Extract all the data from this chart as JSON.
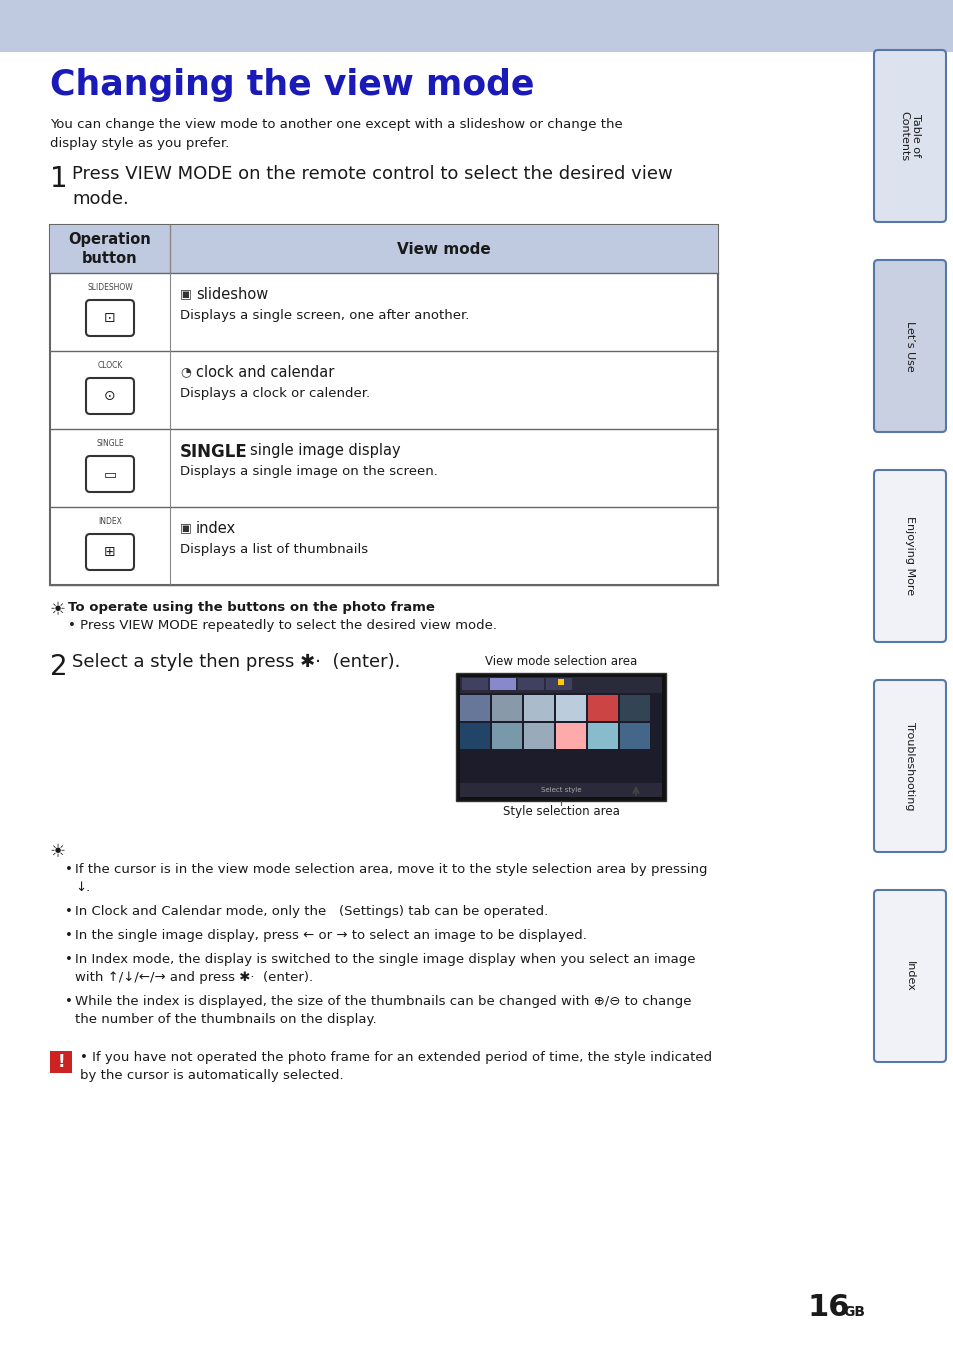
{
  "title": "Changing the view mode",
  "title_color": "#1a1ab8",
  "header_bg": "#bfc9e0",
  "page_bg": "#ffffff",
  "sidebar_bg": "#dce2ee",
  "sidebar_active_bg": "#c8d0e2",
  "body_text": "You can change the view mode to another one except with a slideshow or change the\ndisplay style as you prefer.",
  "step1_text": "Press VIEW MODE on the remote control to select the desired view\nmode.",
  "table_header_bg": "#bfc9e0",
  "table_rows": [
    {
      "button_label": "SLIDESHOW",
      "mode_title": " slideshow",
      "mode_desc": "Displays a single screen, one after another.",
      "bold": false
    },
    {
      "button_label": "CLOCK",
      "mode_title": " clock and calendar",
      "mode_desc": "Displays a clock or calender.",
      "bold": false
    },
    {
      "button_label": "SINGLE",
      "mode_title": " single image display",
      "mode_desc": "Displays a single image on the screen.",
      "bold": true
    },
    {
      "button_label": "INDEX",
      "mode_title": " index",
      "mode_desc": "Displays a list of thumbnails",
      "bold": false
    }
  ],
  "tip_title": "To operate using the buttons on the photo frame",
  "tip_text": "Press VIEW MODE repeatedly to select the desired view mode.",
  "step2_text": "Select a style then press ✱·  (enter).",
  "view_mode_label": "View mode selection area",
  "style_label": "Style selection area",
  "bullet_points": [
    "If the cursor is in the view mode selection area, move it to the style selection area by pressing\n↓.",
    "In Clock and Calendar mode, only the   (Settings) tab can be operated.",
    "In the single image display, press ← or → to select an image to be displayed.",
    "In Index mode, the display is switched to the single image display when you select an image\nwith ↑/↓/←/→ and press ✱·  (enter).",
    "While the index is displayed, the size of the thumbnails can be changed with ⊕/⊖ to change\nthe number of the thumbnails on the display."
  ],
  "warning_text": "If you have not operated the photo frame for an extended period of time, the style indicated\nby the cursor is automatically selected.",
  "page_number": "16",
  "sidebar_labels": [
    "Table of\nContents",
    "Let’s Use",
    "Enjoying More",
    "Troubleshooting",
    "Index"
  ]
}
